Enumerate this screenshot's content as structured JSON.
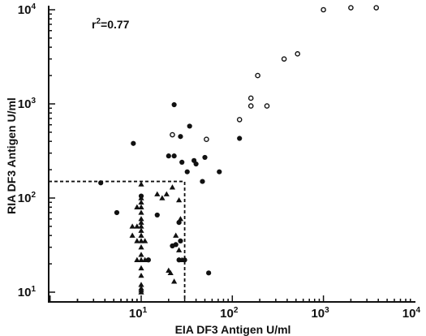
{
  "chart_data": {
    "type": "scatter",
    "title": "",
    "xlabel": "EIA DF3 Antigen U/ml",
    "ylabel": "RIA DF3 Antigen U/ml",
    "x_scale": "log",
    "y_scale": "log",
    "xlim": [
      1,
      10000
    ],
    "ylim": [
      8,
      12500
    ],
    "x_ticks": [
      {
        "base": "10",
        "exp": "1",
        "value": 10
      },
      {
        "base": "10",
        "exp": "2",
        "value": 100
      },
      {
        "base": "10",
        "exp": "3",
        "value": 1000
      },
      {
        "base": "10",
        "exp": "4",
        "value": 10000
      }
    ],
    "y_ticks": [
      {
        "base": "10",
        "exp": "1",
        "value": 10
      },
      {
        "base": "10",
        "exp": "2",
        "value": 100
      },
      {
        "base": "10",
        "exp": "3",
        "value": 1000
      },
      {
        "base": "10",
        "exp": "4",
        "value": 10000
      }
    ],
    "annotation": {
      "prefix": "r",
      "sup": "2",
      "suffix": "=0.77"
    },
    "threshold": {
      "x": 30,
      "y": 150
    },
    "series": [
      {
        "marker": "open-circle",
        "points": [
          [
            1000,
            10000
          ],
          [
            2000,
            10500
          ],
          [
            3800,
            10500
          ],
          [
            520,
            3400
          ],
          [
            370,
            3000
          ],
          [
            190,
            2000
          ],
          [
            160,
            1150
          ],
          [
            160,
            950
          ],
          [
            240,
            950
          ],
          [
            120,
            680
          ],
          [
            52,
            420
          ],
          [
            22,
            470
          ]
        ]
      },
      {
        "marker": "filled-circle",
        "points": [
          [
            23,
            980
          ],
          [
            34,
            580
          ],
          [
            8.2,
            380
          ],
          [
            27,
            450
          ],
          [
            23,
            280
          ],
          [
            20,
            280
          ],
          [
            38,
            250
          ],
          [
            50,
            270
          ],
          [
            28,
            240
          ],
          [
            32,
            190
          ],
          [
            40,
            230
          ],
          [
            72,
            190
          ],
          [
            47,
            150
          ],
          [
            120,
            430
          ],
          [
            3.6,
            145
          ],
          [
            5.4,
            70
          ],
          [
            10,
            105
          ],
          [
            15,
            66
          ],
          [
            26,
            55
          ],
          [
            27,
            35
          ],
          [
            24,
            32
          ],
          [
            12,
            22
          ],
          [
            30,
            22
          ],
          [
            22,
            31
          ],
          [
            26,
            22
          ],
          [
            55,
            16
          ]
        ]
      },
      {
        "marker": "filled-triangle",
        "points": [
          [
            10,
            140
          ],
          [
            10,
            100
          ],
          [
            10,
            90
          ],
          [
            10,
            80
          ],
          [
            10,
            70
          ],
          [
            10,
            60
          ],
          [
            10,
            55
          ],
          [
            10,
            50
          ],
          [
            10,
            45
          ],
          [
            10,
            40
          ],
          [
            10,
            35
          ],
          [
            10,
            30
          ],
          [
            10,
            25
          ],
          [
            10,
            22
          ],
          [
            10,
            18
          ],
          [
            10,
            15
          ],
          [
            10,
            12
          ],
          [
            10,
            11
          ],
          [
            10,
            10.5
          ],
          [
            10,
            10
          ],
          [
            9,
            80
          ],
          [
            9,
            50
          ],
          [
            9,
            35
          ],
          [
            9,
            22
          ],
          [
            8,
            50
          ],
          [
            8,
            40
          ],
          [
            11,
            35
          ],
          [
            11,
            22
          ],
          [
            17,
            100
          ],
          [
            19,
            110
          ],
          [
            15,
            110
          ],
          [
            22,
            130
          ],
          [
            26,
            95
          ],
          [
            27,
            60
          ],
          [
            21,
            16
          ],
          [
            23,
            13
          ],
          [
            20,
            17
          ],
          [
            24,
            40
          ],
          [
            26,
            28
          ],
          [
            28,
            22
          ]
        ]
      }
    ]
  }
}
